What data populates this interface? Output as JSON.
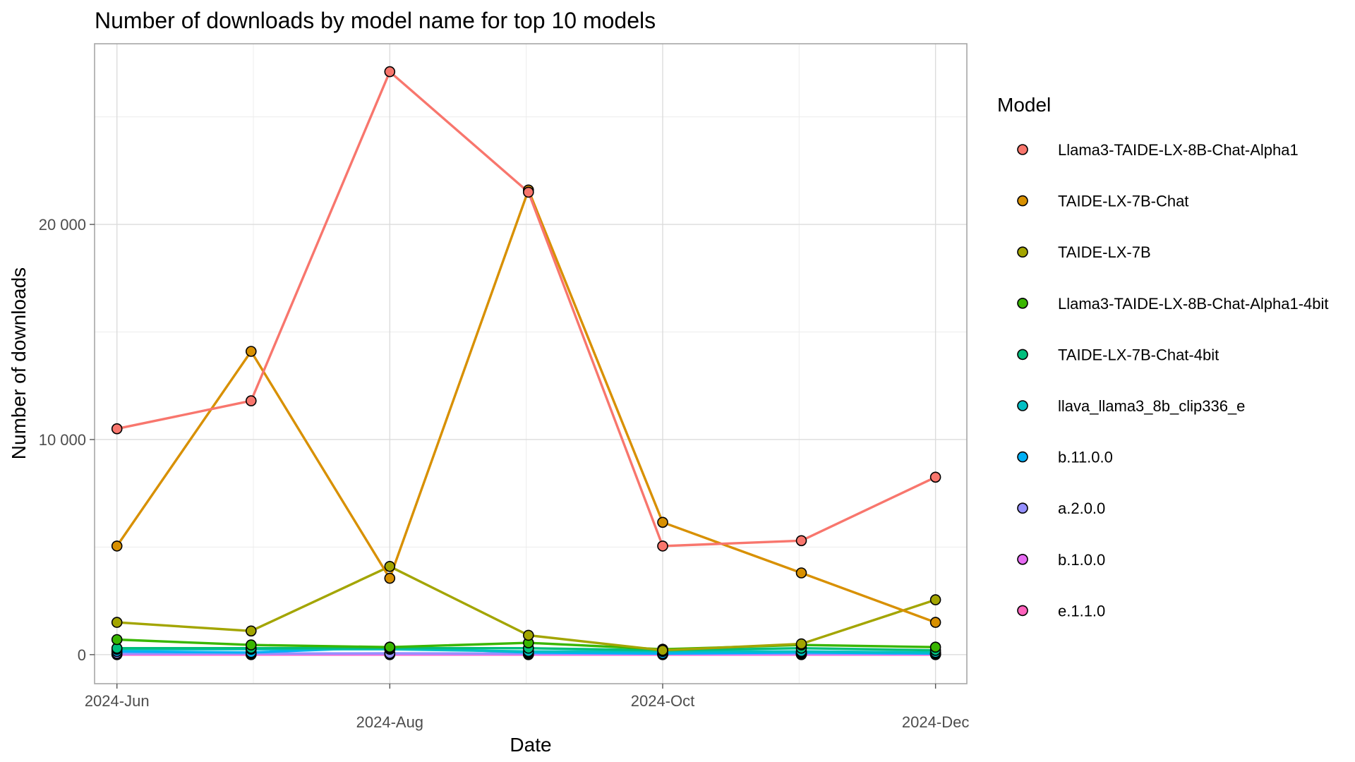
{
  "chart_data": {
    "type": "line",
    "title": "Number of downloads by model name for top 10 models",
    "xlabel": "Date",
    "ylabel": "Number of downloads",
    "x": [
      "2024-06",
      "2024-07",
      "2024-08",
      "2024-09",
      "2024-10",
      "2024-11",
      "2024-12"
    ],
    "x_ticks": [
      {
        "date": "2024-06",
        "label": "2024-Jun",
        "row": 0
      },
      {
        "date": "2024-08",
        "label": "2024-Aug",
        "row": 1
      },
      {
        "date": "2024-10",
        "label": "2024-Oct",
        "row": 0
      },
      {
        "date": "2024-12",
        "label": "2024-Dec",
        "row": 1
      }
    ],
    "xlim": [
      "2024-05-27",
      "2024-12-08"
    ],
    "y_ticks": [
      {
        "value": 0,
        "label": "0"
      },
      {
        "value": 10000,
        "label": "10 000"
      },
      {
        "value": 20000,
        "label": "20 000"
      }
    ],
    "ylim": [
      -1350,
      28400
    ],
    "grid": true,
    "legend": {
      "title": "Model",
      "position": "right"
    },
    "series": [
      {
        "name": "Llama3-TAIDE-LX-8B-Chat-Alpha1",
        "color": "#F8766D",
        "values": [
          10500,
          11800,
          27100,
          21500,
          5050,
          5300,
          8250
        ]
      },
      {
        "name": "TAIDE-LX-7B-Chat",
        "color": "#D89000",
        "values": [
          5050,
          14100,
          3550,
          21600,
          6150,
          3800,
          1500
        ]
      },
      {
        "name": "TAIDE-LX-7B",
        "color": "#A3A500",
        "values": [
          1500,
          1100,
          4100,
          900,
          200,
          500,
          2550
        ]
      },
      {
        "name": "Llama3-TAIDE-LX-8B-Chat-Alpha1-4bit",
        "color": "#39B600",
        "values": [
          700,
          450,
          350,
          550,
          250,
          450,
          350
        ]
      },
      {
        "name": "TAIDE-LX-7B-Chat-4bit",
        "color": "#00BF7D",
        "values": [
          300,
          300,
          300,
          300,
          200,
          300,
          200
        ]
      },
      {
        "name": "llava_llama3_8b_clip336_e",
        "color": "#00BFC4",
        "values": [
          250,
          250,
          250,
          150,
          150,
          150,
          100
        ]
      },
      {
        "name": "b.11.0.0",
        "color": "#00B0F6",
        "values": [
          150,
          100,
          350,
          100,
          50,
          100,
          50
        ]
      },
      {
        "name": "a.2.0.0",
        "color": "#9590FF",
        "values": [
          60,
          50,
          60,
          50,
          40,
          50,
          40
        ]
      },
      {
        "name": "b.1.0.0",
        "color": "#E76BF3",
        "values": [
          30,
          30,
          30,
          20,
          20,
          20,
          20
        ]
      },
      {
        "name": "e.1.1.0",
        "color": "#FF62BC",
        "values": [
          0,
          0,
          0,
          0,
          0,
          0,
          0
        ]
      }
    ]
  }
}
